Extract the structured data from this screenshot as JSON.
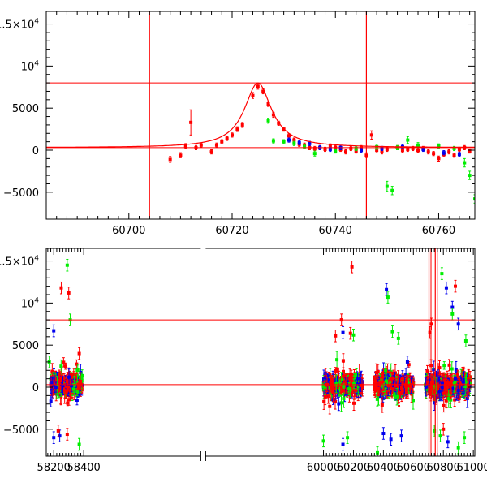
{
  "chart_data": [
    {
      "type": "scatter",
      "panel": "top",
      "xlim": [
        60684,
        60767
      ],
      "ylim": [
        -8200,
        16500
      ],
      "xticks": [
        60700,
        60720,
        60740,
        60760
      ],
      "xtick_labels": [
        "60700",
        "60720",
        "60740",
        "60760"
      ],
      "yticks": [
        -5000,
        0,
        5000,
        10000,
        15000
      ],
      "ytick_labels": [
        {
          "base": "−5000",
          "exp": ""
        },
        {
          "base": "0",
          "exp": ""
        },
        {
          "base": "5000",
          "exp": ""
        },
        {
          "base": "10",
          "exp": "4"
        },
        {
          "base": "1.5×10",
          "exp": "4"
        }
      ],
      "hlines": [
        8000,
        300
      ],
      "vlines": [
        60704,
        60746
      ],
      "model_curve": {
        "baseline": 300,
        "peak": 8000,
        "t0": 60725,
        "width": 3.2,
        "color": "#ff0000"
      },
      "series": [
        {
          "color": "#ff0000",
          "points": [
            [
              60708,
              -1100,
              350
            ],
            [
              60710,
              -600,
              300
            ],
            [
              60711,
              500,
              280
            ],
            [
              60712,
              3300,
              1500
            ],
            [
              60713,
              300,
              250
            ],
            [
              60714,
              600,
              250
            ],
            [
              60716,
              -200,
              250
            ],
            [
              60717,
              600,
              250
            ],
            [
              60718,
              1000,
              250
            ],
            [
              60719,
              1400,
              250
            ],
            [
              60720,
              1800,
              250
            ],
            [
              60721,
              2500,
              280
            ],
            [
              60722,
              3000,
              300
            ],
            [
              60724,
              6500,
              350
            ],
            [
              60725,
              7600,
              350
            ],
            [
              60726,
              7000,
              300
            ],
            [
              60727,
              5500,
              300
            ],
            [
              60728,
              4200,
              300
            ],
            [
              60729,
              3200,
              250
            ],
            [
              60730,
              2500,
              250
            ],
            [
              60731,
              1700,
              250
            ],
            [
              60732,
              1200,
              250
            ],
            [
              60733,
              700,
              250
            ],
            [
              60734,
              600,
              250
            ],
            [
              60735,
              300,
              250
            ],
            [
              60736,
              200,
              250
            ],
            [
              60737,
              300,
              250
            ],
            [
              60738,
              100,
              250
            ],
            [
              60739,
              500,
              250
            ],
            [
              60740,
              300,
              250
            ],
            [
              60741,
              100,
              250
            ],
            [
              60742,
              -200,
              250
            ],
            [
              60743,
              200,
              250
            ],
            [
              60744,
              -100,
              250
            ],
            [
              60745,
              300,
              250
            ],
            [
              60746,
              -600,
              280
            ],
            [
              60747,
              1800,
              500
            ],
            [
              60748,
              0,
              300
            ],
            [
              60749,
              -200,
              250
            ],
            [
              60750,
              100,
              250
            ],
            [
              60752,
              300,
              250
            ],
            [
              60753,
              0,
              250
            ],
            [
              60754,
              100,
              250
            ],
            [
              60755,
              200,
              250
            ],
            [
              60756,
              0,
              250
            ],
            [
              60757,
              200,
              250
            ],
            [
              60758,
              -200,
              250
            ],
            [
              60759,
              -400,
              250
            ],
            [
              60760,
              -1000,
              300
            ],
            [
              60761,
              -500,
              250
            ],
            [
              60762,
              -200,
              250
            ],
            [
              60763,
              -600,
              250
            ],
            [
              60764,
              100,
              250
            ],
            [
              60765,
              300,
              250
            ],
            [
              60766,
              -100,
              250
            ]
          ]
        },
        {
          "color": "#00ee00",
          "points": [
            [
              60727,
              3500,
              300
            ],
            [
              60728,
              1100,
              250
            ],
            [
              60730,
              1000,
              250
            ],
            [
              60732,
              800,
              250
            ],
            [
              60734,
              400,
              250
            ],
            [
              60736,
              -400,
              300
            ],
            [
              60740,
              -100,
              250
            ],
            [
              60744,
              200,
              250
            ],
            [
              60748,
              400,
              300
            ],
            [
              60750,
              -4300,
              600
            ],
            [
              60751,
              -4800,
              500
            ],
            [
              60752,
              300,
              250
            ],
            [
              60754,
              1200,
              400
            ],
            [
              60756,
              600,
              300
            ],
            [
              60760,
              500,
              250
            ],
            [
              60763,
              200,
              250
            ],
            [
              60765,
              -1500,
              500
            ],
            [
              60766,
              -3000,
              500
            ],
            [
              60767,
              -5800,
              500
            ]
          ]
        },
        {
          "color": "#0000ee",
          "points": [
            [
              60731,
              1200,
              250
            ],
            [
              60733,
              900,
              250
            ],
            [
              60735,
              800,
              250
            ],
            [
              60737,
              300,
              250
            ],
            [
              60739,
              100,
              250
            ],
            [
              60741,
              300,
              250
            ],
            [
              60745,
              0,
              250
            ],
            [
              60749,
              200,
              250
            ],
            [
              60753,
              400,
              250
            ],
            [
              60757,
              100,
              250
            ],
            [
              60761,
              -300,
              250
            ],
            [
              60764,
              -500,
              250
            ]
          ]
        }
      ]
    },
    {
      "type": "scatter",
      "panel": "bottom",
      "xlim": [
        58150,
        61010
      ],
      "ylim": [
        -8200,
        16500
      ],
      "xaxis_break": [
        58410,
        59985
      ],
      "xticks": [
        58200,
        58400,
        60000,
        60200,
        60400,
        60600,
        60800,
        61000
      ],
      "xtick_labels": [
        "58200",
        "58400",
        "60000",
        "60200",
        "60400",
        "60600",
        "60800",
        "61000"
      ],
      "yticks": [
        -5000,
        0,
        5000,
        10000,
        15000
      ],
      "ytick_labels": [
        {
          "base": "−5000",
          "exp": ""
        },
        {
          "base": "0",
          "exp": ""
        },
        {
          "base": "5000",
          "exp": ""
        },
        {
          "base": "10",
          "exp": "4"
        },
        {
          "base": "1.5×10",
          "exp": "4"
        }
      ],
      "hlines": [
        8000,
        300
      ],
      "vlines": [
        60704,
        60746
      ],
      "seasons": [
        [
          58180,
          58390
        ],
        [
          60000,
          60260
        ],
        [
          60340,
          60600
        ],
        [
          60680,
          60980
        ]
      ],
      "series_colors": [
        "#ff0000",
        "#00ee00",
        "#0000ee"
      ],
      "outliers": [
        [
          58250,
          11800,
          "#ff0000"
        ],
        [
          58300,
          11200,
          "#ff0000"
        ],
        [
          58290,
          14500,
          "#00ee00"
        ],
        [
          58310,
          8000,
          "#00ee00"
        ],
        [
          58200,
          6700,
          "#0000ee"
        ],
        [
          58370,
          4000,
          "#ff0000"
        ],
        [
          58200,
          -6000,
          "#0000ee"
        ],
        [
          58240,
          -5800,
          "#0000ee"
        ],
        [
          58290,
          -5600,
          "#ff0000"
        ],
        [
          58370,
          -6800,
          "#00ee00"
        ],
        [
          58230,
          -5200,
          "#ff0000"
        ],
        [
          58170,
          3000,
          "#00ee00"
        ],
        [
          60190,
          14300,
          "#ff0000"
        ],
        [
          60120,
          8000,
          "#ff0000"
        ],
        [
          60130,
          6500,
          "#0000ee"
        ],
        [
          60000,
          -6400,
          "#00ee00"
        ],
        [
          60130,
          -6800,
          "#0000ee"
        ],
        [
          60080,
          6100,
          "#ff0000"
        ],
        [
          60160,
          -6000,
          "#00ee00"
        ],
        [
          60180,
          6400,
          "#ff0000"
        ],
        [
          60200,
          6200,
          "#00ee00"
        ],
        [
          60420,
          11600,
          "#0000ee"
        ],
        [
          60430,
          10700,
          "#00ee00"
        ],
        [
          60500,
          5800,
          "#00ee00"
        ],
        [
          60460,
          6600,
          "#00ee00"
        ],
        [
          60400,
          -5500,
          "#0000ee"
        ],
        [
          60450,
          -6200,
          "#0000ee"
        ],
        [
          60520,
          -5800,
          "#0000ee"
        ],
        [
          60360,
          -7800,
          "#00ee00"
        ],
        [
          60560,
          3000,
          "#0000ee"
        ],
        [
          60790,
          13500,
          "#00ee00"
        ],
        [
          60820,
          11800,
          "#0000ee"
        ],
        [
          60880,
          12000,
          "#ff0000"
        ],
        [
          60860,
          9500,
          "#0000ee"
        ],
        [
          60900,
          7500,
          "#0000ee"
        ],
        [
          60720,
          7500,
          "#ff0000"
        ],
        [
          60710,
          6500,
          "#ff0000"
        ],
        [
          60780,
          -5800,
          "#00ee00"
        ],
        [
          60830,
          -6500,
          "#0000ee"
        ],
        [
          60900,
          -7200,
          "#00ee00"
        ],
        [
          60940,
          -6000,
          "#00ee00"
        ],
        [
          60860,
          8700,
          "#00ee00"
        ],
        [
          60950,
          5500,
          "#00ee00"
        ],
        [
          60740,
          -5200,
          "#00ee00"
        ],
        [
          60800,
          -5000,
          "#ff0000"
        ]
      ]
    }
  ]
}
